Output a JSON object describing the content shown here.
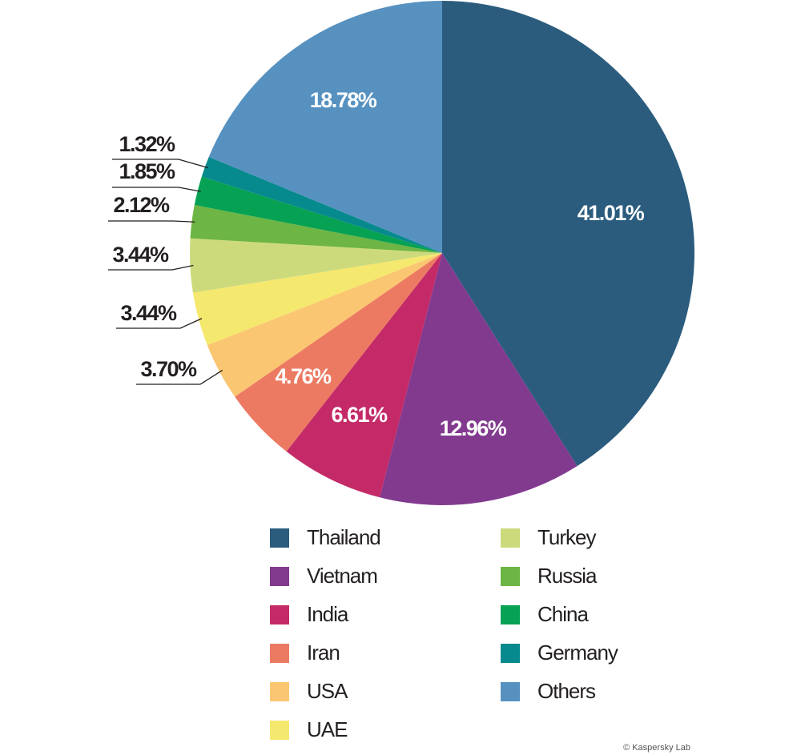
{
  "chart_data": {
    "type": "pie",
    "categories": [
      "Thailand",
      "Vietnam",
      "India",
      "Iran",
      "USA",
      "UAE",
      "Turkey",
      "Russia",
      "China",
      "Germany",
      "Others"
    ],
    "values": [
      41.01,
      12.96,
      6.61,
      4.76,
      3.7,
      3.44,
      3.44,
      2.12,
      1.85,
      1.32,
      18.78
    ],
    "value_labels": [
      "41.01%",
      "12.96%",
      "6.61%",
      "4.76%",
      "3.70%",
      "3.44%",
      "3.44%",
      "2.12%",
      "1.85%",
      "1.32%",
      "18.78%"
    ],
    "colors": [
      "#2b5c7e",
      "#823a8f",
      "#c42a68",
      "#ec7a62",
      "#fbc671",
      "#f5e86e",
      "#cdda7c",
      "#6db544",
      "#06a153",
      "#078a8d",
      "#5691c0"
    ],
    "credit": "© Kaspersky Lab"
  }
}
